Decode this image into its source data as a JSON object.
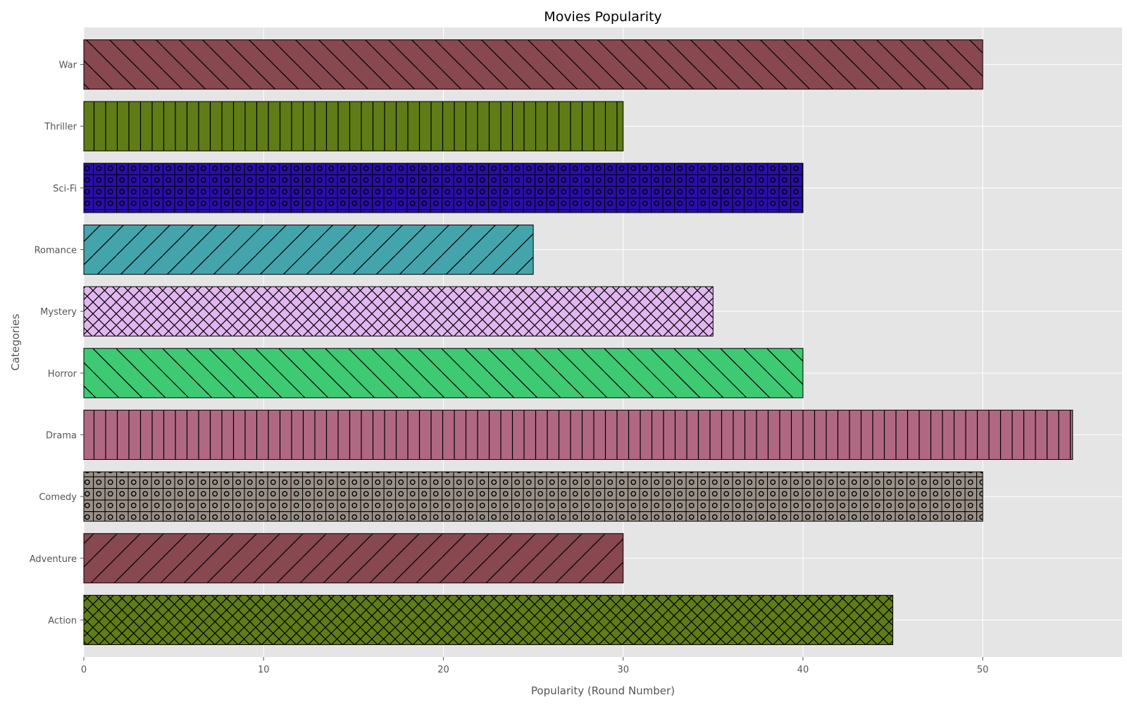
{
  "chart_data": {
    "type": "bar",
    "orientation": "horizontal",
    "title": "Movies Popularity",
    "xlabel": "Popularity (Round Number)",
    "ylabel": "Categories",
    "categories": [
      "Action",
      "Adventure",
      "Comedy",
      "Drama",
      "Horror",
      "Mystery",
      "Romance",
      "Sci-Fi",
      "Thriller",
      "War"
    ],
    "values": [
      45,
      30,
      50,
      55,
      40,
      35,
      25,
      40,
      30,
      50
    ],
    "colors": [
      "#5f7c17",
      "#874850",
      "#9a9088",
      "#b06882",
      "#3ec973",
      "#e2b6f0",
      "#44a4ac",
      "#2a0eab",
      "#5f7c17",
      "#874850"
    ],
    "hatches": [
      "cross",
      "forward",
      "grid-circle",
      "vertical",
      "backward",
      "cross",
      "forward",
      "grid-circle",
      "vertical",
      "backward"
    ],
    "xlim": [
      0,
      57.75
    ],
    "xticks": [
      0,
      10,
      20,
      30,
      40,
      50
    ],
    "grid": true,
    "style": "ggplot",
    "background": "#e5e5e5"
  }
}
